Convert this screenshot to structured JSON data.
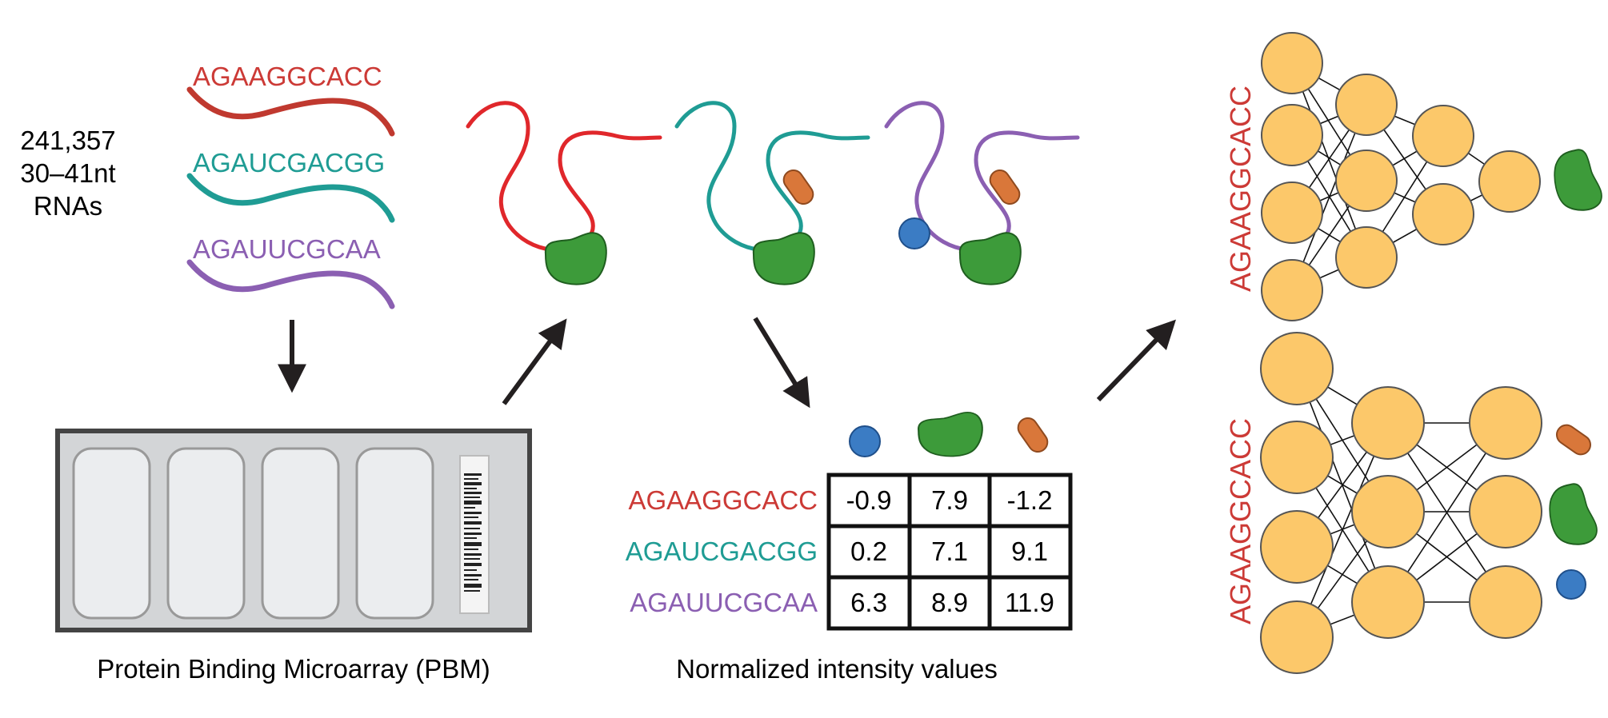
{
  "colors": {
    "red": "#cc3a36",
    "red_strand": "#e0272b",
    "teal": "#1f9c94",
    "purple": "#8b5fb2",
    "black": "#231f20",
    "green_protein": "#3d9b3a",
    "orange_protein": "#d9773a",
    "blue_protein": "#3b7cc4",
    "node_fill": "#fcc86a",
    "array_bg": "#d3d5d7",
    "well_fill": "#ebedef"
  },
  "library": {
    "count": "241,357",
    "length": "30–41nt",
    "type": "RNAs",
    "sequences": [
      {
        "text": "AGAAGGCACC",
        "color": "red"
      },
      {
        "text": "AGAUCGACGG",
        "color": "teal"
      },
      {
        "text": "AGAUUCGCAA",
        "color": "purple"
      }
    ]
  },
  "pbm": {
    "caption": "Protein Binding Microarray (PBM)"
  },
  "intensity_table": {
    "caption": "Normalized intensity values",
    "column_icons": [
      "blue-circle-protein-icon",
      "green-blob-protein-icon",
      "orange-capsule-protein-icon"
    ],
    "rows": [
      {
        "seq": "AGAAGGCACC",
        "color": "red",
        "values": [
          "-0.9",
          "7.9",
          "-1.2"
        ]
      },
      {
        "seq": "AGAUCGACGG",
        "color": "teal",
        "values": [
          "0.2",
          "7.1",
          "9.1"
        ]
      },
      {
        "seq": "AGAUUCGCAA",
        "color": "purple",
        "values": [
          "6.3",
          "8.9",
          "11.9"
        ]
      }
    ]
  },
  "networks": {
    "top": {
      "input_label": "AGAAGGCACC",
      "layers": [
        4,
        3,
        2,
        1
      ],
      "outputs": [
        "green-blob-protein-icon"
      ]
    },
    "bottom": {
      "input_label": "AGAAGGCACC",
      "layers": [
        4,
        3,
        3
      ],
      "outputs": [
        "orange-capsule-protein-icon",
        "green-blob-protein-icon",
        "blue-circle-protein-icon"
      ]
    }
  }
}
